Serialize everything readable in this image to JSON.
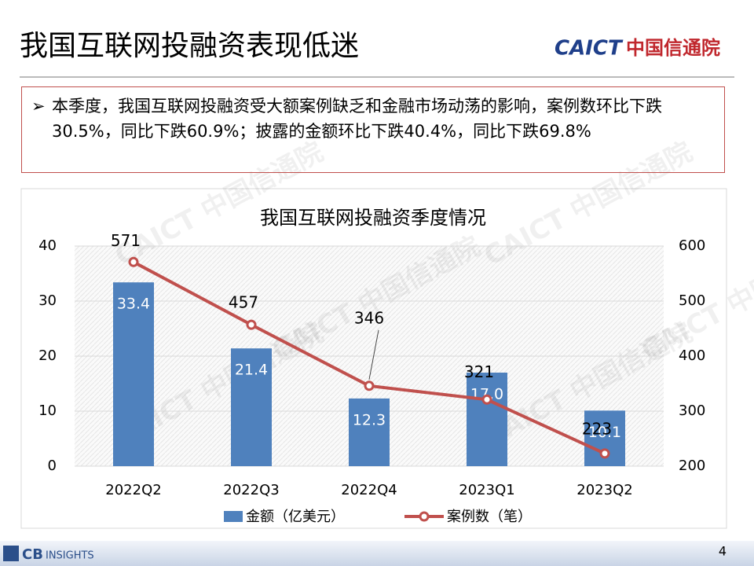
{
  "slide": {
    "title": "我国互联网投融资表现低迷",
    "logo_en": "CAICT",
    "logo_cn": "中国信通院",
    "bullet": "本季度，我国互联网投融资受大额案例缺乏和金融市场动荡的影响，案例数环比下跌30.5%，同比下跌60.9%；披露的金额环比下跌40.4%，同比下跌69.8%",
    "watermark": "CAICT 中国信通院",
    "footer_logo_a": "CB",
    "footer_logo_b": "INSIGHTS",
    "page_number": "4"
  },
  "chart_data": {
    "type": "bar-line",
    "title": "我国互联网投融资季度情况",
    "categories": [
      "2022Q2",
      "2022Q3",
      "2022Q4",
      "2023Q1",
      "2023Q2"
    ],
    "series": [
      {
        "name": "金额（亿美元）",
        "type": "bar",
        "color": "#4f81bd",
        "values": [
          33.4,
          21.4,
          12.3,
          17.0,
          10.1
        ],
        "value_labels": [
          "33.4",
          "21.4",
          "12.3",
          "17.0",
          "10.1"
        ]
      },
      {
        "name": "案例数（笔）",
        "type": "line",
        "axis": "y2",
        "color": "#c0504d",
        "values": [
          571,
          457,
          346,
          321,
          223
        ]
      }
    ],
    "ylim": [
      0,
      40
    ],
    "yticks": [
      0,
      10,
      20,
      30,
      40
    ],
    "y2lim": [
      200,
      600
    ],
    "y2ticks": [
      200,
      300,
      400,
      500,
      600
    ],
    "grid": true,
    "legend": "bottom"
  }
}
